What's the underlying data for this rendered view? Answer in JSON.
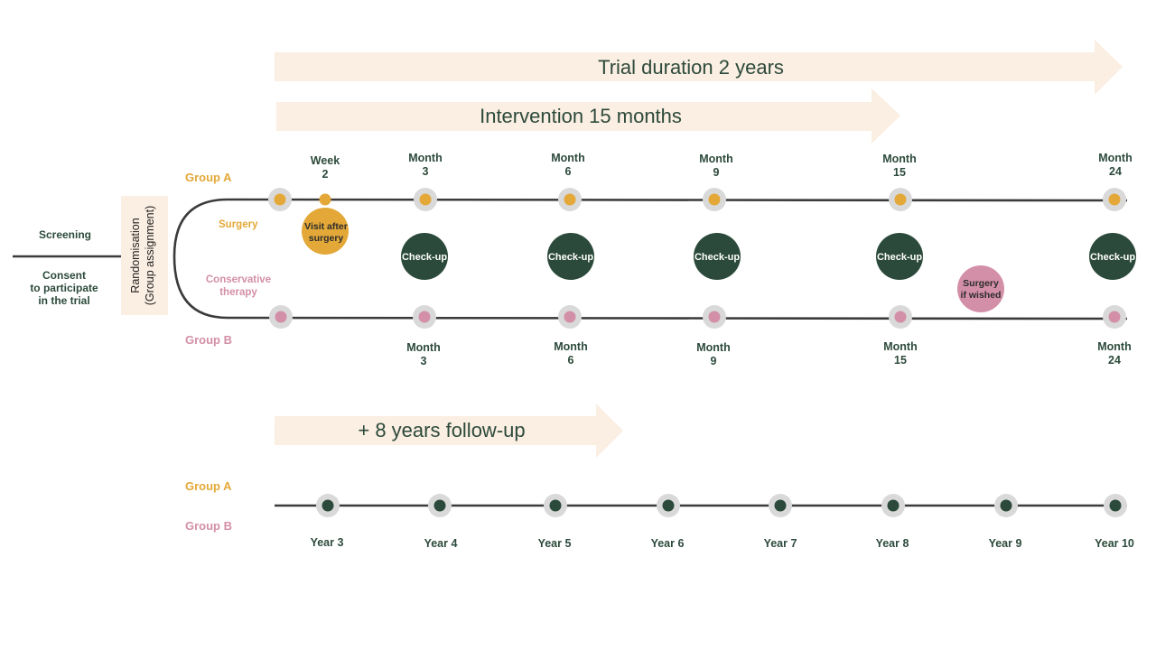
{
  "colors": {
    "arrow_fill": "#fbeee2",
    "green": "#2c4a3b",
    "orange": "#e3a838",
    "pink": "#d38fa7",
    "line": "#3b3b3b",
    "halo": "#d9d9d9"
  },
  "arrows": {
    "trial": "Trial duration 2 years",
    "intervention": "Intervention 15 months",
    "followup": "+ 8 years follow-up"
  },
  "left": {
    "screening": "Screening",
    "consent": [
      "Consent",
      "to participate",
      "in the trial"
    ],
    "randomisation": [
      "Randomisation",
      "(Group assignment)"
    ]
  },
  "groups": {
    "a": "Group A",
    "b": "Group B",
    "arm_a": "Surgery",
    "arm_b": [
      "Conservative",
      "therapy"
    ]
  },
  "top_timepoints": [
    {
      "unit": "Week",
      "value": "2"
    },
    {
      "unit": "Month",
      "value": "3"
    },
    {
      "unit": "Month",
      "value": "6"
    },
    {
      "unit": "Month",
      "value": "9"
    },
    {
      "unit": "Month",
      "value": "15"
    },
    {
      "unit": "Month",
      "value": "24"
    }
  ],
  "bottom_timepoints": [
    {
      "unit": "Month",
      "value": "3"
    },
    {
      "unit": "Month",
      "value": "6"
    },
    {
      "unit": "Month",
      "value": "9"
    },
    {
      "unit": "Month",
      "value": "15"
    },
    {
      "unit": "Month",
      "value": "24"
    }
  ],
  "checkup_label": "Check-up",
  "visit_after_surgery": [
    "Visit after",
    "surgery"
  ],
  "surgery_if_wished": [
    "Surgery",
    "if wished"
  ],
  "followup_groups": {
    "a": "Group A",
    "b": "Group B"
  },
  "years": [
    "Year 3",
    "Year 4",
    "Year 5",
    "Year 6",
    "Year 7",
    "Year 8",
    "Year 9",
    "Year 10"
  ]
}
